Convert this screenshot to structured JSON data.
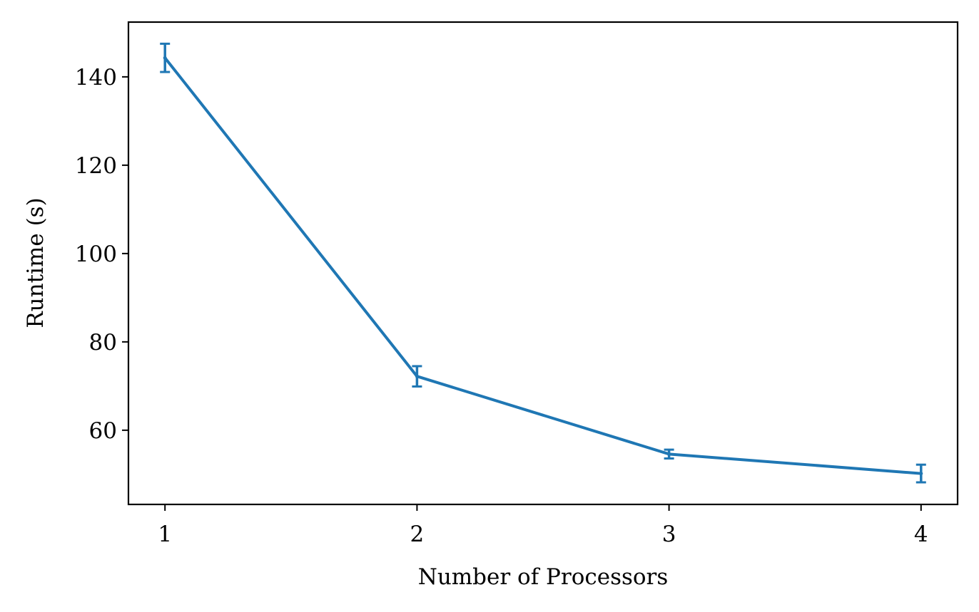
{
  "chart_data": {
    "type": "line",
    "title": "",
    "xlabel": "Number of Processors",
    "ylabel": "Runtime (s)",
    "x": [
      1,
      2,
      3,
      4
    ],
    "xticks": [
      "1",
      "2",
      "3",
      "4"
    ],
    "yticks": [
      "60",
      "80",
      "100",
      "120",
      "140"
    ],
    "xlim": [
      0.855,
      4.145
    ],
    "ylim": [
      43.2,
      152.4
    ],
    "grid": false,
    "series": [
      {
        "values": [
          144.3,
          72.2,
          54.6,
          50.2
        ],
        "errors": [
          3.2,
          2.3,
          1.0,
          2.0
        ],
        "color": "#1f77b4"
      }
    ]
  }
}
